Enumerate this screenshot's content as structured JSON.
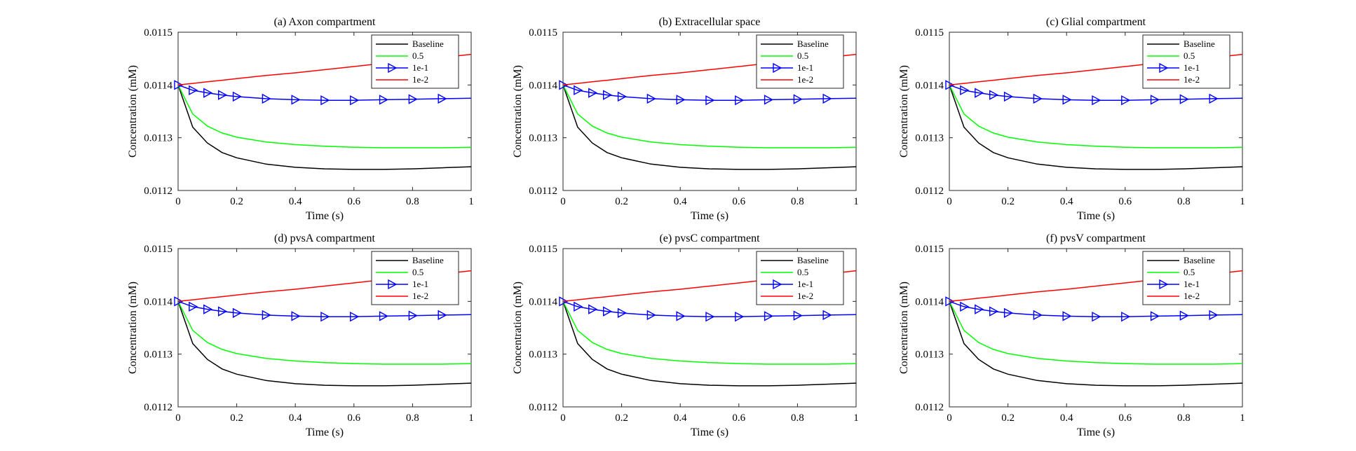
{
  "figure": {
    "colors": {
      "Baseline": "#000000",
      "0.5": "#00ff00",
      "1e-1": "#0000ff",
      "1e-2": "#ff0000"
    }
  },
  "chart_data": [
    {
      "type": "line",
      "title": "(a) Axon compartment",
      "xlabel": "Time (s)",
      "ylabel": "Concentration (mM)",
      "xlim": [
        0,
        1
      ],
      "ylim": [
        0.0112,
        0.0115
      ],
      "xticks": [
        "0",
        "0.2",
        "0.4",
        "0.6",
        "0.8",
        "1"
      ],
      "yticks": [
        "0.0112",
        "0.0113",
        "0.0114",
        "0.0115"
      ],
      "legend_position": "top-right",
      "x": [
        0,
        0.05,
        0.1,
        0.15,
        0.2,
        0.3,
        0.4,
        0.5,
        0.6,
        0.7,
        0.8,
        0.9,
        1.0
      ],
      "series": [
        {
          "name": "Baseline",
          "marker": "none",
          "values": [
            0.0114,
            0.01132,
            0.01129,
            0.011272,
            0.011262,
            0.01125,
            0.011244,
            0.011241,
            0.01124,
            0.01124,
            0.011241,
            0.011243,
            0.011245
          ]
        },
        {
          "name": "0.5",
          "marker": "none",
          "values": [
            0.0114,
            0.011345,
            0.011322,
            0.011309,
            0.011301,
            0.011292,
            0.011287,
            0.011284,
            0.011282,
            0.011281,
            0.011281,
            0.011281,
            0.011282
          ]
        },
        {
          "name": "1e-1",
          "marker": "triangle-right",
          "values": [
            0.0114,
            0.01139,
            0.011385,
            0.011381,
            0.011378,
            0.011374,
            0.011372,
            0.011371,
            0.011371,
            0.011372,
            0.011373,
            0.011374,
            0.011375
          ]
        },
        {
          "name": "1e-2",
          "marker": "none",
          "values": [
            0.0114,
            0.011403,
            0.011406,
            0.011409,
            0.011412,
            0.011418,
            0.011423,
            0.011429,
            0.011435,
            0.011441,
            0.011446,
            0.011452,
            0.011458
          ]
        }
      ]
    },
    {
      "type": "line",
      "title": "(b) Extracellular space",
      "xlabel": "Time (s)",
      "ylabel": "Concentration (mM)",
      "xlim": [
        0,
        1
      ],
      "ylim": [
        0.0112,
        0.0115
      ],
      "xticks": [
        "0",
        "0.2",
        "0.4",
        "0.6",
        "0.8",
        "1"
      ],
      "yticks": [
        "0.0112",
        "0.0113",
        "0.0114",
        "0.0115"
      ],
      "legend_position": "top-right",
      "x": [
        0,
        0.05,
        0.1,
        0.15,
        0.2,
        0.3,
        0.4,
        0.5,
        0.6,
        0.7,
        0.8,
        0.9,
        1.0
      ],
      "series": [
        {
          "name": "Baseline",
          "marker": "none",
          "values": [
            0.0114,
            0.01132,
            0.01129,
            0.011272,
            0.011262,
            0.01125,
            0.011244,
            0.011241,
            0.01124,
            0.01124,
            0.011241,
            0.011243,
            0.011245
          ]
        },
        {
          "name": "0.5",
          "marker": "none",
          "values": [
            0.0114,
            0.011345,
            0.011322,
            0.011309,
            0.011301,
            0.011292,
            0.011287,
            0.011284,
            0.011282,
            0.011281,
            0.011281,
            0.011281,
            0.011282
          ]
        },
        {
          "name": "1e-1",
          "marker": "triangle-right",
          "values": [
            0.0114,
            0.01139,
            0.011385,
            0.011381,
            0.011378,
            0.011374,
            0.011372,
            0.011371,
            0.011371,
            0.011372,
            0.011373,
            0.011374,
            0.011375
          ]
        },
        {
          "name": "1e-2",
          "marker": "none",
          "values": [
            0.0114,
            0.011403,
            0.011406,
            0.011409,
            0.011412,
            0.011418,
            0.011423,
            0.011429,
            0.011435,
            0.011441,
            0.011446,
            0.011452,
            0.011458
          ]
        }
      ]
    },
    {
      "type": "line",
      "title": "(c) Glial compartment",
      "xlabel": "Time (s)",
      "ylabel": "Concentration (mM)",
      "xlim": [
        0,
        1
      ],
      "ylim": [
        0.0112,
        0.0115
      ],
      "xticks": [
        "0",
        "0.2",
        "0.4",
        "0.6",
        "0.8",
        "1"
      ],
      "yticks": [
        "0.0112",
        "0.0113",
        "0.0114",
        "0.0115"
      ],
      "legend_position": "top-right",
      "x": [
        0,
        0.05,
        0.1,
        0.15,
        0.2,
        0.3,
        0.4,
        0.5,
        0.6,
        0.7,
        0.8,
        0.9,
        1.0
      ],
      "series": [
        {
          "name": "Baseline",
          "marker": "none",
          "values": [
            0.0114,
            0.01132,
            0.01129,
            0.011272,
            0.011262,
            0.01125,
            0.011244,
            0.011241,
            0.01124,
            0.01124,
            0.011241,
            0.011243,
            0.011245
          ]
        },
        {
          "name": "0.5",
          "marker": "none",
          "values": [
            0.0114,
            0.011345,
            0.011322,
            0.011309,
            0.011301,
            0.011292,
            0.011287,
            0.011284,
            0.011282,
            0.011281,
            0.011281,
            0.011281,
            0.011282
          ]
        },
        {
          "name": "1e-1",
          "marker": "triangle-right",
          "values": [
            0.0114,
            0.01139,
            0.011385,
            0.011381,
            0.011378,
            0.011374,
            0.011372,
            0.011371,
            0.011371,
            0.011372,
            0.011373,
            0.011374,
            0.011375
          ]
        },
        {
          "name": "1e-2",
          "marker": "none",
          "values": [
            0.0114,
            0.011403,
            0.011406,
            0.011409,
            0.011412,
            0.011418,
            0.011423,
            0.011429,
            0.011435,
            0.011441,
            0.011446,
            0.011452,
            0.011458
          ]
        }
      ]
    },
    {
      "type": "line",
      "title": "(d) pvsA compartment",
      "xlabel": "Time (s)",
      "ylabel": "Concentration (mM)",
      "xlim": [
        0,
        1
      ],
      "ylim": [
        0.0112,
        0.0115
      ],
      "xticks": [
        "0",
        "0.2",
        "0.4",
        "0.6",
        "0.8",
        "1"
      ],
      "yticks": [
        "0.0112",
        "0.0113",
        "0.0114",
        "0.0115"
      ],
      "legend_position": "top-right",
      "x": [
        0,
        0.05,
        0.1,
        0.15,
        0.2,
        0.3,
        0.4,
        0.5,
        0.6,
        0.7,
        0.8,
        0.9,
        1.0
      ],
      "series": [
        {
          "name": "Baseline",
          "marker": "none",
          "values": [
            0.0114,
            0.01132,
            0.01129,
            0.011272,
            0.011262,
            0.01125,
            0.011244,
            0.011241,
            0.01124,
            0.01124,
            0.011241,
            0.011243,
            0.011245
          ]
        },
        {
          "name": "0.5",
          "marker": "none",
          "values": [
            0.0114,
            0.011345,
            0.011322,
            0.011309,
            0.011301,
            0.011292,
            0.011287,
            0.011284,
            0.011282,
            0.011281,
            0.011281,
            0.011281,
            0.011282
          ]
        },
        {
          "name": "1e-1",
          "marker": "triangle-right",
          "values": [
            0.0114,
            0.01139,
            0.011385,
            0.011381,
            0.011378,
            0.011374,
            0.011372,
            0.011371,
            0.011371,
            0.011372,
            0.011373,
            0.011374,
            0.011375
          ]
        },
        {
          "name": "1e-2",
          "marker": "none",
          "values": [
            0.0114,
            0.011403,
            0.011406,
            0.011409,
            0.011412,
            0.011418,
            0.011423,
            0.011429,
            0.011435,
            0.011441,
            0.011446,
            0.011452,
            0.011458
          ]
        }
      ]
    },
    {
      "type": "line",
      "title": "(e) pvsC compartment",
      "xlabel": "Time (s)",
      "ylabel": "Concentration (mM)",
      "xlim": [
        0,
        1
      ],
      "ylim": [
        0.0112,
        0.0115
      ],
      "xticks": [
        "0",
        "0.2",
        "0.4",
        "0.6",
        "0.8",
        "1"
      ],
      "yticks": [
        "0.0112",
        "0.0113",
        "0.0114",
        "0.0115"
      ],
      "legend_position": "top-right",
      "x": [
        0,
        0.05,
        0.1,
        0.15,
        0.2,
        0.3,
        0.4,
        0.5,
        0.6,
        0.7,
        0.8,
        0.9,
        1.0
      ],
      "series": [
        {
          "name": "Baseline",
          "marker": "none",
          "values": [
            0.0114,
            0.01132,
            0.01129,
            0.011272,
            0.011262,
            0.01125,
            0.011244,
            0.011241,
            0.01124,
            0.01124,
            0.011241,
            0.011243,
            0.011245
          ]
        },
        {
          "name": "0.5",
          "marker": "none",
          "values": [
            0.0114,
            0.011345,
            0.011322,
            0.011309,
            0.011301,
            0.011292,
            0.011287,
            0.011284,
            0.011282,
            0.011281,
            0.011281,
            0.011281,
            0.011282
          ]
        },
        {
          "name": "1e-1",
          "marker": "triangle-right",
          "values": [
            0.0114,
            0.01139,
            0.011385,
            0.011381,
            0.011378,
            0.011374,
            0.011372,
            0.011371,
            0.011371,
            0.011372,
            0.011373,
            0.011374,
            0.011375
          ]
        },
        {
          "name": "1e-2",
          "marker": "none",
          "values": [
            0.0114,
            0.011403,
            0.011406,
            0.011409,
            0.011412,
            0.011418,
            0.011423,
            0.011429,
            0.011435,
            0.011441,
            0.011446,
            0.011452,
            0.011458
          ]
        }
      ]
    },
    {
      "type": "line",
      "title": "(f) pvsV compartment",
      "xlabel": "Time (s)",
      "ylabel": "Concentration (mM)",
      "xlim": [
        0,
        1
      ],
      "ylim": [
        0.0112,
        0.0115
      ],
      "xticks": [
        "0",
        "0.2",
        "0.4",
        "0.6",
        "0.8",
        "1"
      ],
      "yticks": [
        "0.0112",
        "0.0113",
        "0.0114",
        "0.0115"
      ],
      "legend_position": "top-right",
      "x": [
        0,
        0.05,
        0.1,
        0.15,
        0.2,
        0.3,
        0.4,
        0.5,
        0.6,
        0.7,
        0.8,
        0.9,
        1.0
      ],
      "series": [
        {
          "name": "Baseline",
          "marker": "none",
          "values": [
            0.0114,
            0.01132,
            0.01129,
            0.011272,
            0.011262,
            0.01125,
            0.011244,
            0.011241,
            0.01124,
            0.01124,
            0.011241,
            0.011243,
            0.011245
          ]
        },
        {
          "name": "0.5",
          "marker": "none",
          "values": [
            0.0114,
            0.011345,
            0.011322,
            0.011309,
            0.011301,
            0.011292,
            0.011287,
            0.011284,
            0.011282,
            0.011281,
            0.011281,
            0.011281,
            0.011282
          ]
        },
        {
          "name": "1e-1",
          "marker": "triangle-right",
          "values": [
            0.0114,
            0.01139,
            0.011385,
            0.011381,
            0.011378,
            0.011374,
            0.011372,
            0.011371,
            0.011371,
            0.011372,
            0.011373,
            0.011374,
            0.011375
          ]
        },
        {
          "name": "1e-2",
          "marker": "none",
          "values": [
            0.0114,
            0.011403,
            0.011406,
            0.011409,
            0.011412,
            0.011418,
            0.011423,
            0.011429,
            0.011435,
            0.011441,
            0.011446,
            0.011452,
            0.011458
          ]
        }
      ]
    }
  ]
}
